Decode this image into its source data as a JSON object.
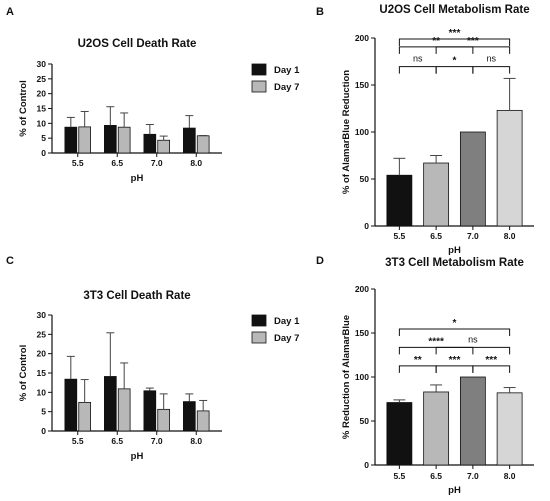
{
  "panel_labels": [
    "A",
    "B",
    "C",
    "D"
  ],
  "chart_data": [
    {
      "panel": "A",
      "type": "bar",
      "title": "U2OS Cell Death Rate",
      "xlabel": "pH",
      "ylabel": "% of Control",
      "ylim": [
        0,
        30
      ],
      "yticks": [
        0,
        5,
        10,
        15,
        20,
        25,
        30
      ],
      "categories": [
        "5.5",
        "6.5",
        "7.0",
        "8.0"
      ],
      "series": [
        {
          "name": "Day 1",
          "color": "#111111",
          "values": [
            8.7,
            9.3,
            6.3,
            8.4
          ],
          "errors": [
            3.3,
            6.3,
            3.3,
            4.2
          ]
        },
        {
          "name": "Day 7",
          "color": "#b8b8b8",
          "values": [
            8.8,
            8.7,
            4.3,
            5.8
          ],
          "errors": [
            5.2,
            4.8,
            1.4,
            0.1
          ]
        }
      ],
      "legend": "right"
    },
    {
      "panel": "B",
      "type": "bar",
      "title": "U2OS Cell Metabolism Rate",
      "xlabel": "pH",
      "ylabel": "% of AlamarBlue Reduction",
      "ylim": [
        0,
        200
      ],
      "yticks": [
        0,
        50,
        100,
        150,
        200
      ],
      "categories": [
        "5.5",
        "6.5",
        "7.0",
        "8.0"
      ],
      "values": [
        54,
        67,
        100,
        123
      ],
      "errors": [
        18,
        8,
        0,
        34
      ],
      "colors": [
        "#111111",
        "#b8b8b8",
        "#7f7f7f",
        "#d6d6d6"
      ],
      "annotations": [
        {
          "from": "5.5",
          "to": "6.5",
          "label": "ns"
        },
        {
          "from": "6.5",
          "to": "7.0",
          "label": "*"
        },
        {
          "from": "7.0",
          "to": "8.0",
          "label": "ns"
        },
        {
          "from": "5.5",
          "to": "7.0",
          "label": "**"
        },
        {
          "from": "6.5",
          "to": "8.0",
          "label": "***"
        },
        {
          "from": "5.5",
          "to": "8.0",
          "label": "***"
        }
      ]
    },
    {
      "panel": "C",
      "type": "bar",
      "title": "3T3 Cell Death Rate",
      "xlabel": "pH",
      "ylabel": "% of Control",
      "ylim": [
        0,
        30
      ],
      "yticks": [
        0,
        5,
        10,
        15,
        20,
        25,
        30
      ],
      "categories": [
        "5.5",
        "6.5",
        "7.0",
        "8.0"
      ],
      "series": [
        {
          "name": "Day 1",
          "color": "#111111",
          "values": [
            13.4,
            14.1,
            10.4,
            7.6
          ],
          "errors": [
            5.9,
            11.3,
            0.7,
            2.0
          ]
        },
        {
          "name": "Day 7",
          "color": "#b8b8b8",
          "values": [
            7.4,
            10.9,
            5.6,
            5.2
          ],
          "errors": [
            5.9,
            6.7,
            4.0,
            2.7
          ]
        }
      ],
      "legend": "right"
    },
    {
      "panel": "D",
      "type": "bar",
      "title": "3T3 Cell Metabolism Rate",
      "xlabel": "pH",
      "ylabel": "% Reduction of AlamarBlue",
      "ylim": [
        0,
        200
      ],
      "yticks": [
        0,
        50,
        100,
        150,
        200
      ],
      "categories": [
        "5.5",
        "6.5",
        "7.0",
        "8.0"
      ],
      "values": [
        71,
        83,
        100,
        82
      ],
      "errors": [
        3,
        8,
        0,
        6
      ],
      "colors": [
        "#111111",
        "#b8b8b8",
        "#7f7f7f",
        "#d6d6d6"
      ],
      "annotations": [
        {
          "from": "5.5",
          "to": "6.5",
          "label": "**"
        },
        {
          "from": "6.5",
          "to": "7.0",
          "label": "***"
        },
        {
          "from": "7.0",
          "to": "8.0",
          "label": "***"
        },
        {
          "from": "5.5",
          "to": "7.0",
          "label": "****"
        },
        {
          "from": "6.5",
          "to": "8.0",
          "label": "ns"
        },
        {
          "from": "5.5",
          "to": "8.0",
          "label": "*"
        }
      ]
    }
  ]
}
